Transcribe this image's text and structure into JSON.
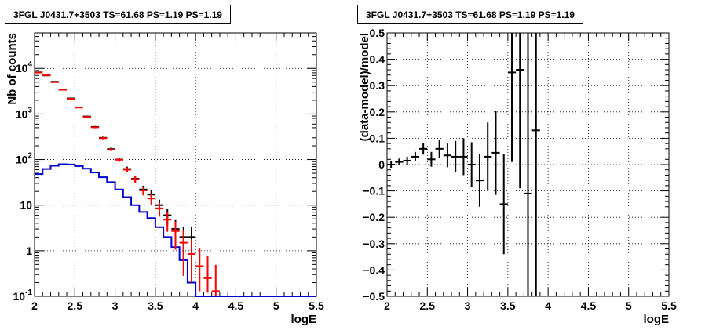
{
  "chart_data": [
    {
      "type": "scatter",
      "panel": "counts",
      "title": "3FGL J0431.7+3503 TS=61.68 PS=1.19 PS=1.19",
      "xlabel": "logE",
      "ylabel": "Nb of counts",
      "xlim": [
        2,
        5.5
      ],
      "ylim": [
        0.1,
        60000
      ],
      "yscale": "log",
      "grid": true,
      "xticks": [
        "2",
        "2.5",
        "3",
        "3.5",
        "4",
        "4.5",
        "5",
        "5.5"
      ],
      "yticks": [
        "10^-1",
        "1",
        "10",
        "10^2",
        "10^3",
        "10^4"
      ],
      "series": [
        {
          "kind": "data",
          "color": "#000000",
          "x": [
            2.05,
            2.15,
            2.25,
            2.35,
            2.45,
            2.55,
            2.65,
            2.75,
            2.85,
            2.95,
            3.05,
            3.15,
            3.25,
            3.35,
            3.45,
            3.55,
            3.65,
            3.75,
            3.85,
            3.95
          ],
          "y": [
            8200,
            7000,
            5100,
            3400,
            2200,
            1400,
            880,
            520,
            300,
            170,
            100,
            62,
            38,
            22,
            17,
            10,
            6,
            3,
            2,
            2
          ],
          "err_lo": [
            90,
            84,
            71,
            58,
            47,
            37,
            30,
            23,
            17,
            13,
            10,
            7.9,
            6.2,
            4.7,
            4.1,
            3.2,
            2.4,
            1.7,
            1.4,
            1.4
          ],
          "err_hi": [
            90,
            84,
            71,
            58,
            47,
            37,
            30,
            23,
            17,
            13,
            10,
            7.9,
            6.2,
            4.7,
            4.1,
            3.2,
            2.4,
            1.7,
            1.4,
            1.4
          ]
        },
        {
          "kind": "model",
          "color": "#ff0000",
          "x": [
            2.05,
            2.15,
            2.25,
            2.35,
            2.45,
            2.55,
            2.65,
            2.75,
            2.85,
            2.95,
            3.05,
            3.15,
            3.25,
            3.35,
            3.45,
            3.55,
            3.65,
            3.75,
            3.85,
            3.95,
            4.05,
            4.15,
            4.25
          ],
          "y": [
            8100,
            7100,
            5000,
            3400,
            2150,
            1380,
            860,
            510,
            295,
            165,
            99,
            60,
            37,
            21,
            14,
            8.5,
            4.8,
            2.7,
            1.5,
            0.85,
            0.46,
            0.25,
            0.13
          ],
          "err_lo": [
            90,
            84,
            71,
            58,
            46,
            37,
            29,
            23,
            17,
            13,
            10,
            7.7,
            6.1,
            4.6,
            3.7,
            2.9,
            2.2,
            1.64,
            1.22,
            0.65,
            0.33,
            0.13,
            0.03
          ],
          "err_hi": [
            90,
            84,
            71,
            58,
            46,
            37,
            29,
            23,
            17,
            13,
            10,
            7.7,
            6.1,
            4.6,
            3.7,
            2.9,
            2.2,
            1.64,
            1.22,
            0.92,
            0.68,
            0.5,
            0.36
          ]
        },
        {
          "kind": "source",
          "color": "#0000cc",
          "bins": [
            2.0,
            2.1,
            2.2,
            2.3,
            2.4,
            2.5,
            2.6,
            2.7,
            2.8,
            2.9,
            3.0,
            3.1,
            3.2,
            3.3,
            3.4,
            3.5,
            3.6,
            3.7,
            3.8,
            3.9,
            4.0,
            4.1,
            4.2,
            4.3,
            4.4,
            4.5,
            4.6,
            4.7,
            4.8,
            4.9,
            5.0,
            5.1,
            5.2,
            5.3,
            5.4,
            5.5
          ],
          "y": [
            48,
            62,
            73,
            79,
            78,
            72,
            63,
            52,
            41,
            32,
            22,
            15,
            10,
            7.1,
            5.2,
            3.3,
            2.0,
            1.2,
            0.62,
            0.2,
            0.1,
            0.1,
            0.1,
            0.1,
            0.1,
            0.1,
            0.1,
            0.1,
            0.1,
            0.1,
            0.1,
            0.1,
            0.1,
            0.1,
            0.1
          ]
        }
      ]
    },
    {
      "type": "scatter",
      "panel": "residuals",
      "title": "3FGL J0431.7+3503 TS=61.68 PS=1.19 PS=1.19",
      "xlabel": "logE",
      "ylabel": "(data-model)/model",
      "xlim": [
        2,
        5.5
      ],
      "ylim": [
        -0.5,
        0.5
      ],
      "grid": true,
      "xticks": [
        "2",
        "2.5",
        "3",
        "3.5",
        "4",
        "4.5",
        "5",
        "5.5"
      ],
      "yticks": [
        "−0.5",
        "−0.4",
        "−0.3",
        "−0.2",
        "−0.1",
        "0",
        "0.1",
        "0.2",
        "0.3",
        "0.4",
        "0.5"
      ],
      "series": [
        {
          "kind": "residual",
          "color": "#000000",
          "x": [
            2.05,
            2.15,
            2.25,
            2.35,
            2.45,
            2.55,
            2.65,
            2.75,
            2.85,
            2.95,
            3.05,
            3.15,
            3.25,
            3.35,
            3.45,
            3.55,
            3.65,
            3.75,
            3.85
          ],
          "y": [
            0.0,
            0.01,
            0.015,
            0.03,
            0.06,
            0.02,
            0.06,
            0.035,
            0.03,
            0.03,
            0.0,
            -0.06,
            0.03,
            0.045,
            -0.15,
            0.35,
            0.36,
            -0.11,
            0.13
          ],
          "err": [
            0.012,
            0.013,
            0.015,
            0.018,
            0.022,
            0.028,
            0.035,
            0.045,
            0.06,
            0.07,
            0.085,
            0.1,
            0.13,
            0.16,
            0.19,
            0.34,
            0.45,
            0.65,
            0.8
          ]
        }
      ]
    }
  ]
}
